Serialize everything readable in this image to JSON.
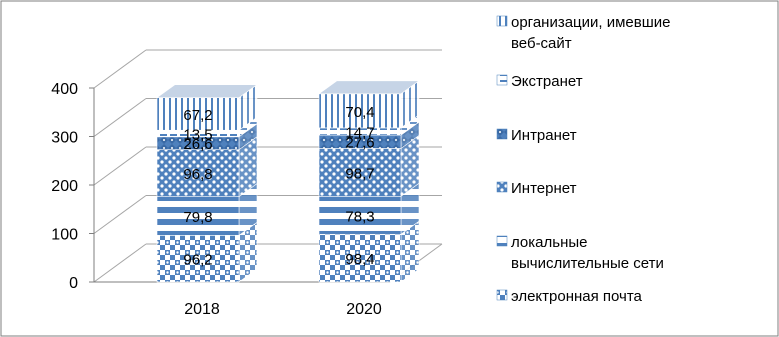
{
  "chart_data": {
    "type": "bar",
    "stacked": true,
    "three_d": true,
    "categories": [
      "2018",
      "2020"
    ],
    "series": [
      {
        "name": "электронная почта",
        "values": [
          96.2,
          98.4
        ],
        "labels": [
          "96,2",
          "98,4"
        ],
        "pattern": "checker"
      },
      {
        "name": [
          "локальные",
          "вычислительные сети"
        ],
        "values": [
          79.8,
          78.3
        ],
        "labels": [
          "79,8",
          "78,3"
        ],
        "pattern": "hstripes"
      },
      {
        "name": "Интернет",
        "values": [
          96.8,
          98.7
        ],
        "labels": [
          "96,8",
          "98,7"
        ],
        "pattern": "dots"
      },
      {
        "name": "Интранет",
        "values": [
          26.6,
          27.6
        ],
        "labels": [
          "26,6",
          "27,6"
        ],
        "pattern": "diamond"
      },
      {
        "name": "Экстранет",
        "values": [
          13.5,
          14.7
        ],
        "labels": [
          "13,5",
          "14,7"
        ],
        "pattern": "hdash"
      },
      {
        "name": [
          "организации, имевшие",
          "веб-сайт"
        ],
        "values": [
          67.2,
          70.4
        ],
        "labels": [
          "67,2",
          "70,4"
        ],
        "pattern": "vstripes"
      }
    ],
    "yticks": [
      "0",
      "100",
      "200",
      "300",
      "400"
    ],
    "ylim": [
      0,
      400
    ],
    "grid": true,
    "legend_position": "right",
    "accent_color": "#4f81bd"
  }
}
